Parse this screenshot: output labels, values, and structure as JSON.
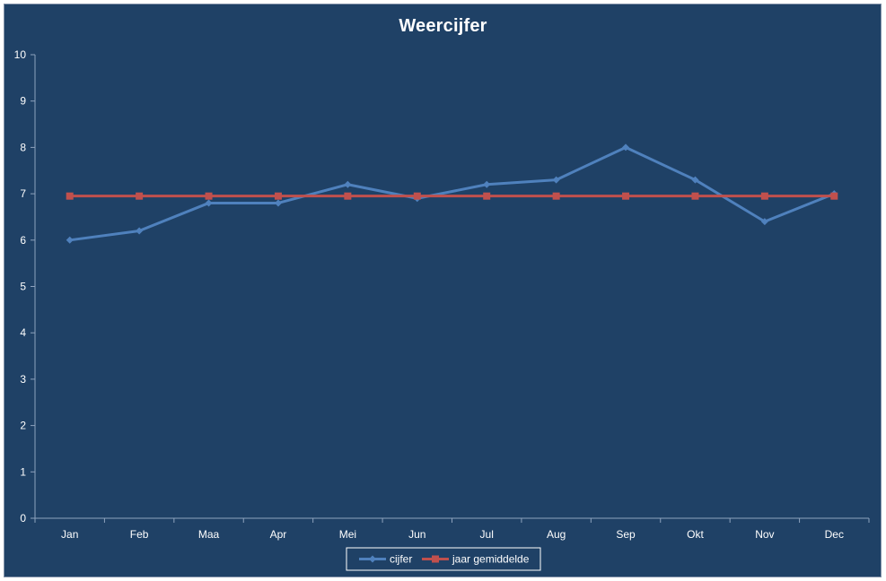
{
  "chart_data": {
    "type": "line",
    "title": "Weercijfer",
    "xlabel": "",
    "ylabel": "",
    "categories": [
      "Jan",
      "Feb",
      "Maa",
      "Apr",
      "Mei",
      "Jun",
      "Jul",
      "Aug",
      "Sep",
      "Okt",
      "Nov",
      "Dec"
    ],
    "ylim": [
      0,
      10
    ],
    "yticks": [
      0,
      1,
      2,
      3,
      4,
      5,
      6,
      7,
      8,
      9,
      10
    ],
    "grid": false,
    "legend_position": "bottom",
    "series": [
      {
        "name": "cijfer",
        "color": "#4f81bd",
        "marker": "diamond",
        "values": [
          6.0,
          6.2,
          6.8,
          6.8,
          7.2,
          6.9,
          7.2,
          7.3,
          8.0,
          7.3,
          6.4,
          7.0
        ]
      },
      {
        "name": "jaar gemiddelde",
        "color": "#c0504d",
        "marker": "square",
        "values": [
          6.95,
          6.95,
          6.95,
          6.95,
          6.95,
          6.95,
          6.95,
          6.95,
          6.95,
          6.95,
          6.95,
          6.95
        ]
      }
    ]
  }
}
